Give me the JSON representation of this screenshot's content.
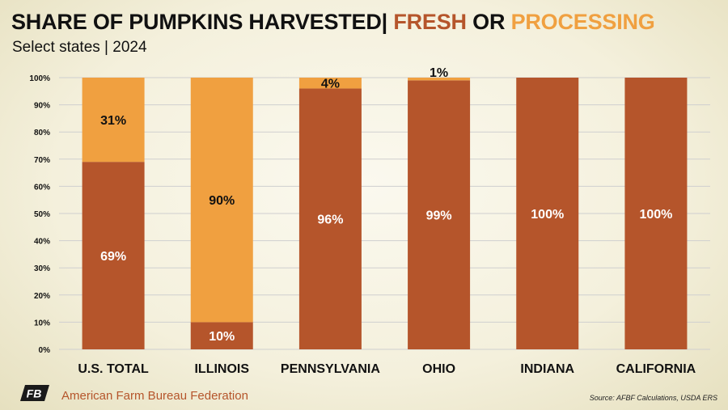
{
  "header": {
    "title_main": "SHARE OF PUMPKINS HARVESTED|",
    "title_fresh": "FRESH",
    "title_or": "OR",
    "title_processing": "PROCESSING",
    "subtitle": "Select states | 2024"
  },
  "colors": {
    "fresh": "#b5552b",
    "processing": "#f0a040",
    "grid": "#cfcfcf"
  },
  "chart_data": {
    "type": "bar",
    "stacked": true,
    "title": "SHARE OF PUMPKINS HARVESTED| FRESH OR PROCESSING",
    "subtitle": "Select states | 2024",
    "categories": [
      "U.S. TOTAL",
      "ILLINOIS",
      "PENNSYLVANIA",
      "OHIO",
      "INDIANA",
      "CALIFORNIA"
    ],
    "series": [
      {
        "name": "Fresh",
        "values": [
          69,
          10,
          96,
          99,
          100,
          100
        ],
        "labels": [
          "69%",
          "10%",
          "96%",
          "99%",
          "100%",
          "100%"
        ]
      },
      {
        "name": "Processing",
        "values": [
          31,
          90,
          4,
          1,
          0,
          0
        ],
        "labels": [
          "31%",
          "90%",
          "4%",
          "1%",
          "",
          ""
        ]
      }
    ],
    "yticks": [
      "0%",
      "10%",
      "20%",
      "30%",
      "40%",
      "50%",
      "60%",
      "70%",
      "80%",
      "90%",
      "100%"
    ],
    "ylim": [
      0,
      100
    ],
    "grid": true,
    "xlabel": "",
    "ylabel": ""
  },
  "footer": {
    "logo_text": "FB",
    "organization": "American Farm Bureau Federation",
    "source": "Source: AFBF Calculations, USDA ERS"
  }
}
